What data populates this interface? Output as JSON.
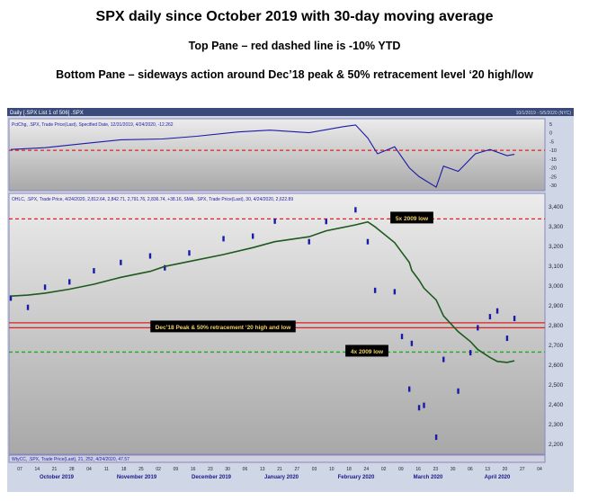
{
  "header": {
    "title": "SPX daily since October 2019 with 30-day moving average",
    "line2": "Top Pane – red dashed line is -10% YTD",
    "line3": "Bottom Pane – sideways action around Dec’18 peak & 50% retracement level ‘20 high/low"
  },
  "window": {
    "title": "Daily [.SPX List 1 of 506] .SPX",
    "range": "10/1/2019 - 5/5/2020 (NYC)"
  },
  "top_pane": {
    "legend": "PctChg, .SPX, Trade Price(Last), Specified Date, 12/31/2019, 4/24/2020, -12.262"
  },
  "main_pane": {
    "legend": "OHLC, .SPX, Trade Price, 4/24/2020, 2,812.64, 2,842.71, 2,791.76, 2,836.74, +38.16, SMA, .SPX, Trade Price(Last), 30, 4/24/2020, 2,622.89"
  },
  "bottom_pane": {
    "legend": "WtyCC, .SPX, Trade Price(Last), 21, 252, 4/24/2020, 47.57"
  },
  "chart_data": [
    {
      "type": "line",
      "name": "top-pane",
      "x": [
        "2019-10-01",
        "2019-10-15",
        "2019-11-01",
        "2019-11-15",
        "2019-12-02",
        "2019-12-16",
        "2020-01-02",
        "2020-01-15",
        "2020-01-31",
        "2020-02-14",
        "2020-02-19",
        "2020-02-24",
        "2020-02-28",
        "2020-03-06",
        "2020-03-12",
        "2020-03-16",
        "2020-03-23",
        "2020-03-26",
        "2020-04-01",
        "2020-04-08",
        "2020-04-14",
        "2020-04-21",
        "2020-04-24"
      ],
      "values": [
        -9.5,
        -8.5,
        -6.0,
        -4.0,
        -3.5,
        -2.0,
        0.5,
        1.5,
        0.0,
        3.5,
        4.5,
        -3.0,
        -12.0,
        -8.0,
        -20.0,
        -25.0,
        -31.0,
        -19.0,
        -22.0,
        -12.0,
        -9.5,
        -13.0,
        -12.3
      ],
      "reference_line": -10,
      "ylim": [
        -32,
        7
      ],
      "y_ticks": [
        5,
        0,
        -5,
        -10,
        -15,
        -20,
        -25,
        -30
      ]
    },
    {
      "type": "line",
      "name": "main-pane",
      "x": [
        "2019-10-01",
        "2019-10-08",
        "2019-10-15",
        "2019-10-25",
        "2019-11-04",
        "2019-11-15",
        "2019-11-27",
        "2019-12-03",
        "2019-12-13",
        "2019-12-27",
        "2020-01-08",
        "2020-01-17",
        "2020-01-31",
        "2020-02-07",
        "2020-02-19",
        "2020-02-24",
        "2020-02-27",
        "2020-03-06",
        "2020-03-09",
        "2020-03-12",
        "2020-03-13",
        "2020-03-16",
        "2020-03-18",
        "2020-03-23",
        "2020-03-26",
        "2020-04-01",
        "2020-04-06",
        "2020-04-09",
        "2020-04-14",
        "2020-04-17",
        "2020-04-21",
        "2020-04-24"
      ],
      "close": [
        2940,
        2893,
        2995,
        3022,
        3078,
        3120,
        3153,
        3093,
        3168,
        3240,
        3253,
        3329,
        3225,
        3327,
        3386,
        3225,
        2979,
        2972,
        2746,
        2480,
        2711,
        2386,
        2398,
        2237,
        2630,
        2470,
        2664,
        2790,
        2846,
        2875,
        2737,
        2837
      ],
      "sma_30": [
        2950,
        2955,
        2965,
        2985,
        3010,
        3045,
        3075,
        3100,
        3125,
        3160,
        3195,
        3225,
        3250,
        3280,
        3310,
        3325,
        3300,
        3220,
        3170,
        3120,
        3080,
        3030,
        2990,
        2930,
        2850,
        2770,
        2720,
        2680,
        2640,
        2620,
        2615,
        2623
      ],
      "ylim": [
        2160,
        3460
      ],
      "y_ticks": [
        "3,400",
        "3,300",
        "3,200",
        "3,100",
        "3,000",
        "2,900",
        "2,800",
        "2,700",
        "2,600",
        "2,500",
        "2,400",
        "2,300",
        "2,200"
      ],
      "reference_lines": [
        {
          "value": 3340,
          "label": "5x 2009 low",
          "color": "#e02020",
          "style": "dashed"
        },
        {
          "value": 2815,
          "label": "",
          "color": "#e02020",
          "style": "solid"
        },
        {
          "value": 2790,
          "label": "Dec’18 Peak & 50% retracement ‘20 high and low",
          "color": "#e02020",
          "style": "solid"
        },
        {
          "value": 2667,
          "label": "4x 2009 low",
          "color": "#22aa22",
          "style": "dashed"
        }
      ]
    }
  ],
  "x_axis": {
    "day_ticks": [
      "07",
      "14",
      "21",
      "28",
      "04",
      "11",
      "18",
      "25",
      "02",
      "09",
      "16",
      "23",
      "30",
      "06",
      "13",
      "21",
      "27",
      "03",
      "10",
      "18",
      "24",
      "02",
      "09",
      "16",
      "23",
      "30",
      "06",
      "13",
      "20",
      "27",
      "04"
    ],
    "months": [
      "October 2019",
      "November 2019",
      "December 2019",
      "January 2020",
      "February 2020",
      "March 2020",
      "April 2020"
    ]
  },
  "colors": {
    "price": "#1a1aa8",
    "sma": "#1e5a1e",
    "pane_bg": "#c4c4c4",
    "label_bg": "#000000",
    "label_text": "#f0d264"
  }
}
